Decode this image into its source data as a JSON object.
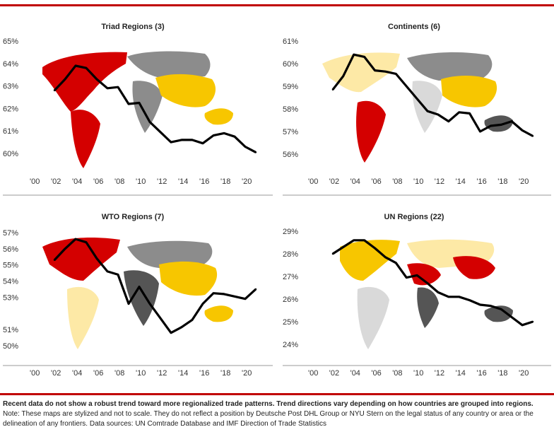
{
  "colors": {
    "accent_red": "#c00000",
    "line": "#000000",
    "region_red": "#d40000",
    "region_yellow": "#f7c600",
    "region_light_yellow": "#fde9a6",
    "region_gray": "#8c8c8c",
    "region_dark_gray": "#555555",
    "region_light_gray": "#d9d9d9"
  },
  "chart_data": [
    {
      "type": "line",
      "title": "Triad Regions (3)",
      "x": [
        2001,
        2002,
        2003,
        2004,
        2005,
        2006,
        2007,
        2008,
        2009,
        2010,
        2011,
        2012,
        2013,
        2014,
        2015,
        2016,
        2017,
        2018,
        2019,
        2020
      ],
      "values": [
        62.8,
        63.3,
        63.9,
        63.8,
        63.3,
        62.9,
        62.95,
        62.2,
        62.25,
        61.4,
        60.95,
        60.5,
        60.6,
        60.6,
        60.45,
        60.8,
        60.9,
        60.75,
        60.3,
        60.05
      ],
      "xticks": [
        "'00",
        "'02",
        "'04",
        "'06",
        "'08",
        "'10",
        "'12",
        "'14",
        "'16",
        "'18",
        "'20"
      ],
      "yticks": [
        "65%",
        "64%",
        "63%",
        "62%",
        "61%",
        "60%"
      ],
      "ylim": [
        60,
        65
      ],
      "xlim": [
        2000,
        2020
      ]
    },
    {
      "type": "line",
      "title": "Continents (6)",
      "x": [
        2001,
        2002,
        2003,
        2004,
        2005,
        2006,
        2007,
        2008,
        2009,
        2010,
        2011,
        2012,
        2013,
        2014,
        2015,
        2016,
        2017,
        2018,
        2019,
        2020
      ],
      "values": [
        58.85,
        59.45,
        60.4,
        60.3,
        59.7,
        59.65,
        59.55,
        59.0,
        58.45,
        57.9,
        57.75,
        57.45,
        57.85,
        57.8,
        57.0,
        57.25,
        57.3,
        57.45,
        57.05,
        56.8
      ],
      "xticks": [
        "'00",
        "'02",
        "'04",
        "'06",
        "'08",
        "'10",
        "'12",
        "'14",
        "'16",
        "'18",
        "'20"
      ],
      "yticks": [
        "61%",
        "60%",
        "59%",
        "58%",
        "57%",
        "56%"
      ],
      "ylim": [
        56,
        61
      ],
      "xlim": [
        2000,
        2020
      ]
    },
    {
      "type": "line",
      "title": "WTO Regions (7)",
      "x": [
        2001,
        2002,
        2003,
        2004,
        2005,
        2006,
        2007,
        2008,
        2009,
        2010,
        2011,
        2012,
        2013,
        2014,
        2015,
        2016,
        2017,
        2018,
        2019,
        2020
      ],
      "values": [
        55.3,
        56.0,
        56.6,
        56.4,
        55.4,
        54.6,
        54.4,
        52.6,
        53.65,
        52.6,
        51.7,
        50.8,
        51.15,
        51.6,
        52.6,
        53.25,
        53.2,
        53.05,
        52.9,
        53.5
      ],
      "xticks": [
        "'00",
        "'02",
        "'04",
        "'06",
        "'08",
        "'10",
        "'12",
        "'14",
        "'16",
        "'18",
        "'20"
      ],
      "yticks": [
        "57%",
        "56%",
        "55%",
        "54%",
        "53%",
        "51%",
        "50%"
      ],
      "ytick_values": [
        57,
        56,
        55,
        54,
        53,
        51,
        50
      ],
      "ylim": [
        50,
        57
      ],
      "xlim": [
        2000,
        2020
      ]
    },
    {
      "type": "line",
      "title": "UN Regions (22)",
      "x": [
        2001,
        2002,
        2003,
        2004,
        2005,
        2006,
        2007,
        2008,
        2009,
        2010,
        2011,
        2012,
        2013,
        2014,
        2015,
        2016,
        2017,
        2018,
        2019,
        2020
      ],
      "values": [
        28.0,
        28.3,
        28.6,
        28.6,
        28.25,
        27.85,
        27.6,
        26.95,
        27.05,
        26.7,
        26.3,
        26.1,
        26.1,
        25.95,
        25.75,
        25.7,
        25.55,
        25.2,
        24.85,
        25.0
      ],
      "xticks": [
        "'00",
        "'02",
        "'04",
        "'06",
        "'08",
        "'10",
        "'12",
        "'14",
        "'16",
        "'18",
        "'20"
      ],
      "yticks": [
        "29%",
        "28%",
        "27%",
        "26%",
        "25%",
        "24%"
      ],
      "ylim": [
        24,
        29
      ],
      "xlim": [
        2000,
        2020
      ]
    }
  ],
  "footer": {
    "headline": "Recent data do not show a robust trend toward more regionalized trade patterns. Trend directions vary depending on how countries are grouped into regions.",
    "note": "Note: These maps are stylized and not to scale. They do not reflect a position by Deutsche Post DHL Group or NYU Stern on the legal status of any country or area or the delineation of any frontiers. Data sources: UN Comtrade Database and IMF Direction of Trade Statistics"
  }
}
